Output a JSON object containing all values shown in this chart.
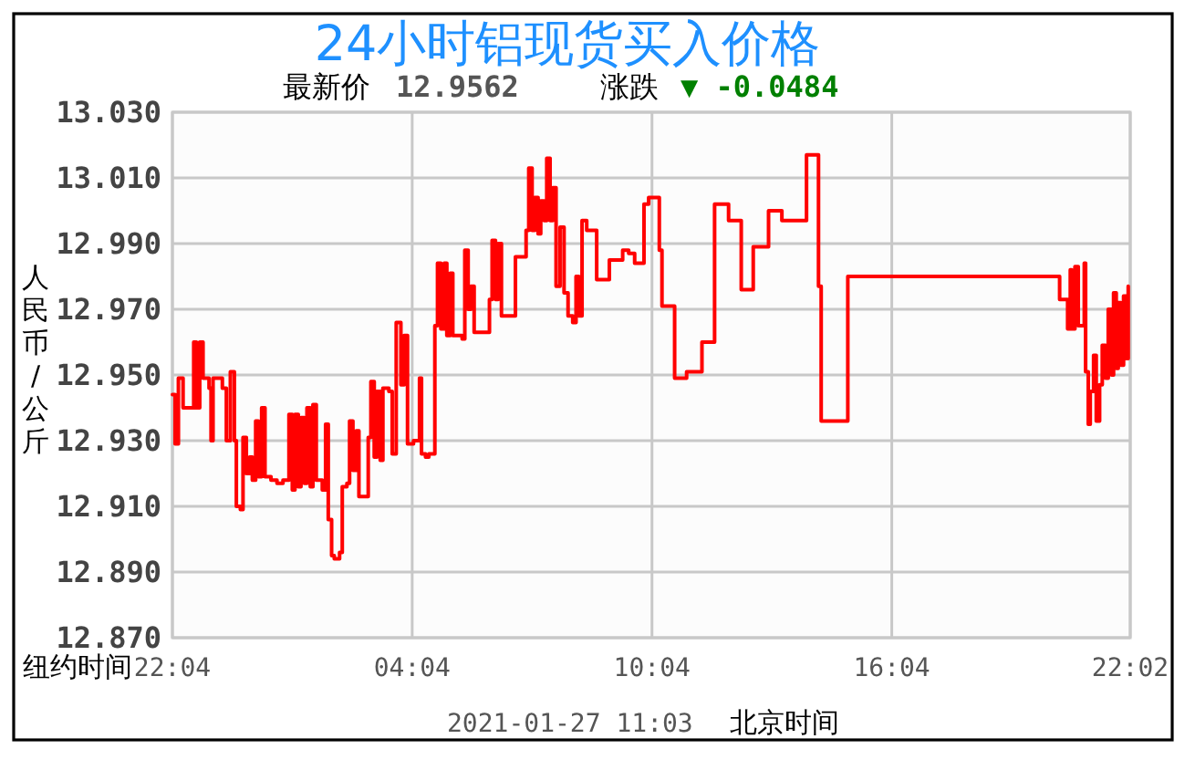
{
  "chart_data": {
    "type": "step",
    "title": "24小时铝现货买入价格",
    "subtitle": "最新价 12.9562",
    "xlabel": "纽约时间",
    "ylabel": "人民币/公斤",
    "annotations": [
      "涨跌",
      "▼ -0.0484",
      "2021-01-27 11:03",
      "北京时间"
    ],
    "color": "#ff0000",
    "grid": true,
    "xlim": [
      "2021-01-25T22:04",
      "2021-01-26T22:02"
    ],
    "xticks": [
      {
        "value": "2021-01-25T22:04",
        "label": "22:04"
      },
      {
        "value": "2021-01-26T04:04",
        "label": "04:04"
      },
      {
        "value": "2021-01-26T10:04",
        "label": "10:04"
      },
      {
        "value": "2021-01-26T16:04",
        "label": "16:04"
      },
      {
        "value": "2021-01-26T22:02",
        "label": "22:02"
      }
    ],
    "ylim": [
      12.87,
      13.03
    ],
    "yticks": [
      {
        "value": 12.87,
        "label": "12.870"
      },
      {
        "value": 12.89,
        "label": "12.890"
      },
      {
        "value": 12.91,
        "label": "12.910"
      },
      {
        "value": 12.93,
        "label": "12.930"
      },
      {
        "value": 12.95,
        "label": "12.950"
      },
      {
        "value": 12.97,
        "label": "12.970"
      },
      {
        "value": 12.99,
        "label": "12.990"
      },
      {
        "value": 13.01,
        "label": "13.010"
      },
      {
        "value": 13.03,
        "label": "13.030"
      }
    ],
    "x": [
      "2021-01-25T22:04",
      "2021-01-25T22:08",
      "2021-01-25T22:13",
      "2021-01-25T22:20",
      "2021-01-25T22:36",
      "2021-01-25T22:40",
      "2021-01-25T22:45",
      "2021-01-25T22:50",
      "2021-01-25T22:59",
      "2021-01-25T23:02",
      "2021-01-25T23:05",
      "2021-01-25T23:19",
      "2021-01-25T23:25",
      "2021-01-25T23:31",
      "2021-01-25T23:37",
      "2021-01-25T23:40",
      "2021-01-25T23:46",
      "2021-01-25T23:50",
      "2021-01-25T23:55",
      "2021-01-26T00:00",
      "2021-01-26T00:04",
      "2021-01-26T00:09",
      "2021-01-26T00:13",
      "2021-01-26T00:18",
      "2021-01-26T00:23",
      "2021-01-26T00:32",
      "2021-01-26T00:41",
      "2021-01-26T00:50",
      "2021-01-26T00:59",
      "2021-01-26T01:04",
      "2021-01-26T01:08",
      "2021-01-26T01:13",
      "2021-01-26T01:17",
      "2021-01-26T01:22",
      "2021-01-26T01:26",
      "2021-01-26T01:31",
      "2021-01-26T01:35",
      "2021-01-26T01:40",
      "2021-01-26T01:49",
      "2021-01-26T01:54",
      "2021-01-26T01:58",
      "2021-01-26T02:03",
      "2021-01-26T02:07",
      "2021-01-26T02:15",
      "2021-01-26T02:19",
      "2021-01-26T02:26",
      "2021-01-26T02:30",
      "2021-01-26T02:35",
      "2021-01-26T02:40",
      "2021-01-26T02:44",
      "2021-01-26T02:58",
      "2021-01-26T03:02",
      "2021-01-26T03:07",
      "2021-01-26T03:11",
      "2021-01-26T03:16",
      "2021-01-26T03:20",
      "2021-01-26T03:29",
      "2021-01-26T03:34",
      "2021-01-26T03:40",
      "2021-01-26T03:47",
      "2021-01-26T03:52",
      "2021-01-26T03:57",
      "2021-01-26T04:06",
      "2021-01-26T04:15",
      "2021-01-26T04:18",
      "2021-01-26T04:24",
      "2021-01-26T04:29",
      "2021-01-26T04:38",
      "2021-01-26T04:42",
      "2021-01-26T04:47",
      "2021-01-26T04:52",
      "2021-01-26T04:56",
      "2021-01-26T05:01",
      "2021-01-26T05:05",
      "2021-01-26T05:19",
      "2021-01-26T05:23",
      "2021-01-26T05:28",
      "2021-01-26T05:32",
      "2021-01-26T05:37",
      "2021-01-26T06:00",
      "2021-01-26T06:04",
      "2021-01-26T06:09",
      "2021-01-26T06:13",
      "2021-01-26T06:18",
      "2021-01-26T06:39",
      "2021-01-26T06:55",
      "2021-01-26T06:59",
      "2021-01-26T07:04",
      "2021-01-26T07:08",
      "2021-01-26T07:13",
      "2021-01-26T07:17",
      "2021-01-26T07:22",
      "2021-01-26T07:26",
      "2021-01-26T07:31",
      "2021-01-26T07:35",
      "2021-01-26T07:40",
      "2021-01-26T07:46",
      "2021-01-26T07:52",
      "2021-01-26T07:58",
      "2021-01-26T08:05",
      "2021-01-26T08:10",
      "2021-01-26T08:14",
      "2021-01-26T08:19",
      "2021-01-26T08:26",
      "2021-01-26T08:41",
      "2021-01-26T09:00",
      "2021-01-26T09:20",
      "2021-01-26T09:29",
      "2021-01-26T09:38",
      "2021-01-26T09:52",
      "2021-01-26T09:59",
      "2021-01-26T10:15",
      "2021-01-26T10:19",
      "2021-01-26T10:38",
      "2021-01-26T10:56",
      "2021-01-26T11:19",
      "2021-01-26T11:38",
      "2021-01-26T11:59",
      "2021-01-26T12:18",
      "2021-01-26T12:36",
      "2021-01-26T12:59",
      "2021-01-26T13:19",
      "2021-01-26T13:56",
      "2021-01-26T14:14",
      "2021-01-26T14:18",
      "2021-01-26T14:58",
      "2021-01-26T20:16",
      "2021-01-26T20:28",
      "2021-01-26T20:32",
      "2021-01-26T20:34",
      "2021-01-26T20:39",
      "2021-01-26T20:44",
      "2021-01-26T20:53",
      "2021-01-26T20:55",
      "2021-01-26T20:59",
      "2021-01-26T21:02",
      "2021-01-26T21:07",
      "2021-01-26T21:11",
      "2021-01-26T21:16",
      "2021-01-26T21:20",
      "2021-01-26T21:25",
      "2021-01-26T21:29",
      "2021-01-26T21:34",
      "2021-01-26T21:37",
      "2021-01-26T21:41",
      "2021-01-26T21:44",
      "2021-01-26T21:48",
      "2021-01-26T21:52",
      "2021-01-26T21:56",
      "2021-01-26T21:59"
    ],
    "values": [
      12.944,
      12.929,
      12.949,
      12.94,
      12.96,
      12.94,
      12.96,
      12.949,
      12.946,
      12.93,
      12.949,
      12.946,
      12.93,
      12.951,
      12.93,
      12.91,
      12.909,
      12.931,
      12.92,
      12.925,
      12.918,
      12.936,
      12.919,
      12.94,
      12.919,
      12.918,
      12.917,
      12.918,
      12.938,
      12.915,
      12.938,
      12.916,
      12.937,
      12.917,
      12.94,
      12.916,
      12.941,
      12.918,
      12.915,
      12.935,
      12.906,
      12.895,
      12.894,
      12.896,
      12.916,
      12.917,
      12.936,
      12.921,
      12.933,
      12.913,
      12.931,
      12.948,
      12.925,
      12.945,
      12.924,
      12.946,
      12.945,
      12.926,
      12.966,
      12.947,
      12.962,
      12.929,
      12.93,
      12.949,
      12.926,
      12.925,
      12.926,
      12.965,
      12.984,
      12.964,
      12.984,
      12.962,
      12.981,
      12.962,
      12.961,
      12.988,
      12.97,
      12.977,
      12.963,
      12.973,
      12.991,
      12.973,
      12.99,
      12.968,
      12.986,
      12.994,
      13.013,
      12.994,
      13.004,
      12.993,
      13.003,
      12.997,
      13.016,
      12.997,
      13.007,
      12.977,
      12.995,
      12.975,
      12.968,
      12.966,
      12.98,
      12.968,
      12.997,
      12.994,
      12.979,
      12.985,
      12.988,
      12.987,
      12.984,
      13.002,
      13.004,
      12.988,
      12.971,
      12.949,
      12.951,
      12.96,
      13.002,
      12.997,
      12.976,
      12.989,
      13.0,
      12.997,
      13.017,
      12.977,
      12.936,
      12.98,
      12.973,
      12.964,
      12.982,
      12.964,
      12.983,
      12.965,
      12.984,
      12.951,
      12.935,
      12.945,
      12.956,
      12.936,
      12.947,
      12.959,
      12.949,
      12.97,
      12.95,
      12.975,
      12.952,
      12.972,
      12.953,
      12.974,
      12.955,
      12.977
    ]
  }
}
